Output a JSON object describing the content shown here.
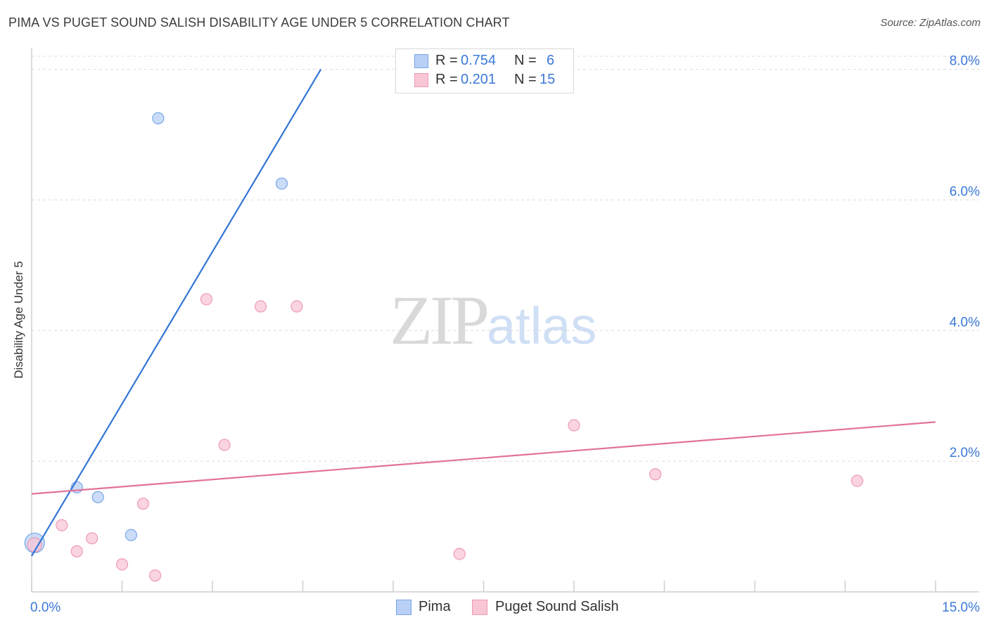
{
  "header": {
    "title": "PIMA VS PUGET SOUND SALISH DISABILITY AGE UNDER 5 CORRELATION CHART",
    "source": "Source: ZipAtlas.com"
  },
  "watermark": {
    "zip": "ZIP",
    "atlas": "atlas"
  },
  "legend": {
    "pima": {
      "r_label": "R =",
      "r_value": "0.754",
      "n_label": "N =",
      "n_value": "6"
    },
    "puget": {
      "r_label": "R =",
      "r_value": "0.201",
      "n_label": "N =",
      "n_value": "15"
    }
  },
  "bottom_legend": {
    "pima": "Pima",
    "puget": "Puget Sound Salish"
  },
  "colors": {
    "pima_fill": "#b8d0f5",
    "pima_stroke": "#7aa6e6",
    "pima_line": "#3375d6",
    "puget_fill": "#f8c6d5",
    "puget_stroke": "#ee9ab5",
    "puget_line": "#e2729a",
    "tick_label": "#3b78d8",
    "grid": "#dcdcdc"
  },
  "chart_data": {
    "type": "scatter",
    "title": "PIMA VS PUGET SOUND SALISH DISABILITY AGE UNDER 5 CORRELATION CHART",
    "xlabel": "",
    "ylabel": "Disability Age Under 5",
    "xlim": [
      0,
      15
    ],
    "ylim": [
      0,
      8.2
    ],
    "x_tick_labels": [
      "0.0%",
      "15.0%"
    ],
    "y_ticks": [
      2,
      4,
      6,
      8
    ],
    "y_tick_labels": [
      "2.0%",
      "4.0%",
      "6.0%",
      "8.0%"
    ],
    "grid": true,
    "series": [
      {
        "name": "Pima",
        "r": 0.754,
        "n": 6,
        "points": [
          {
            "x": 0.05,
            "y": 0.75
          },
          {
            "x": 0.75,
            "y": 1.6
          },
          {
            "x": 1.1,
            "y": 1.45
          },
          {
            "x": 1.65,
            "y": 0.87
          },
          {
            "x": 2.1,
            "y": 7.25
          },
          {
            "x": 4.15,
            "y": 6.25
          }
        ],
        "trend": {
          "x0": 0.0,
          "y0": 0.55,
          "x1": 4.8,
          "y1": 8.0
        }
      },
      {
        "name": "Puget Sound Salish",
        "r": 0.201,
        "n": 15,
        "points": [
          {
            "x": 0.05,
            "y": 0.72
          },
          {
            "x": 0.5,
            "y": 1.02
          },
          {
            "x": 0.75,
            "y": 0.62
          },
          {
            "x": 1.0,
            "y": 0.82
          },
          {
            "x": 1.5,
            "y": 0.42
          },
          {
            "x": 1.85,
            "y": 1.35
          },
          {
            "x": 2.05,
            "y": 0.25
          },
          {
            "x": 2.9,
            "y": 4.48
          },
          {
            "x": 3.2,
            "y": 2.25
          },
          {
            "x": 3.8,
            "y": 4.37
          },
          {
            "x": 4.4,
            "y": 4.37
          },
          {
            "x": 7.1,
            "y": 0.58
          },
          {
            "x": 9.0,
            "y": 2.55
          },
          {
            "x": 10.35,
            "y": 1.8
          },
          {
            "x": 13.7,
            "y": 1.7
          }
        ],
        "trend": {
          "x0": 0.0,
          "y0": 1.5,
          "x1": 15.0,
          "y1": 2.6
        }
      }
    ]
  }
}
